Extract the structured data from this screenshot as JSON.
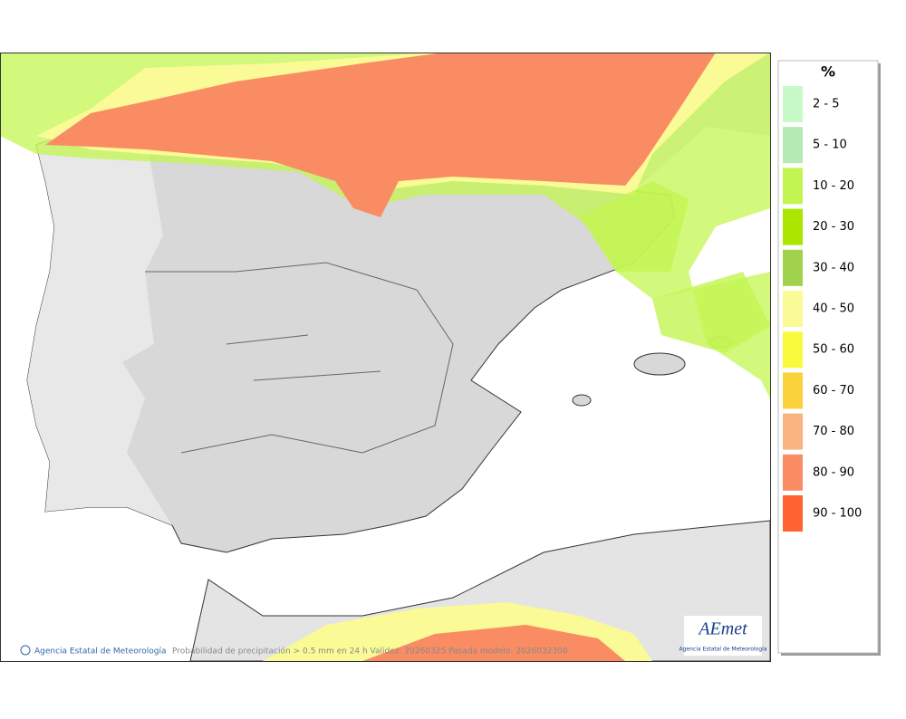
{
  "legend": {
    "title": "%",
    "items": [
      {
        "label": "2 - 5",
        "color": "#c8fac8"
      },
      {
        "label": "5 - 10",
        "color": "#b4ebb4"
      },
      {
        "label": "10 - 20",
        "color": "#c3f550"
      },
      {
        "label": "20 - 30",
        "color": "#aae600"
      },
      {
        "label": "30 - 40",
        "color": "#a0d24b"
      },
      {
        "label": "40 - 50",
        "color": "#fafa96"
      },
      {
        "label": "50 - 60",
        "color": "#fafa3c"
      },
      {
        "label": "60 - 70",
        "color": "#fad23c"
      },
      {
        "label": "70 - 80",
        "color": "#fab482"
      },
      {
        "label": "80 - 90",
        "color": "#fa8c64"
      },
      {
        "label": "90 - 100",
        "color": "#ff6432"
      }
    ]
  },
  "footer": {
    "copyright": "Agencia Estatal de Meteorología",
    "caption": "Probabilidad de precipitación > 0.5 mm en 24 h Validez: 20260325 Pasada modelo: 2026032300"
  },
  "logo": {
    "name": "AEmet",
    "subtitle": "Agencia Estatal de Meteorología"
  }
}
